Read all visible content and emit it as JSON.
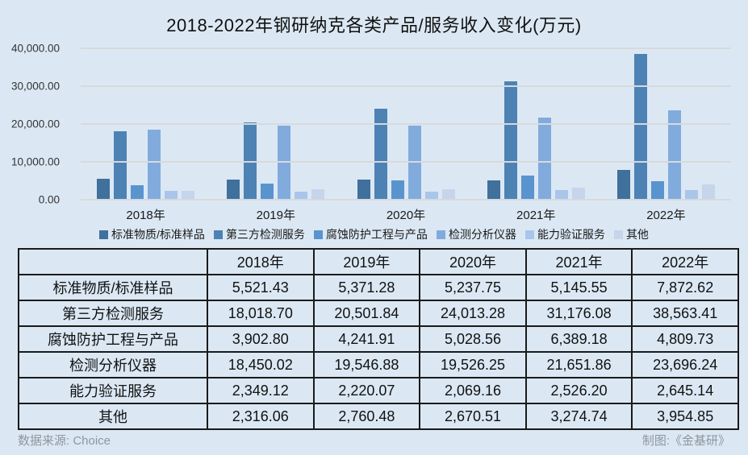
{
  "title": "2018-2022年钢研纳克各类产品/服务收入变化(万元)",
  "chart_data": {
    "type": "bar",
    "title": "2018-2022年钢研纳克各类产品/服务收入变化(万元)",
    "categories": [
      "2018年",
      "2019年",
      "2020年",
      "2021年",
      "2022年"
    ],
    "series": [
      {
        "name": "标准物质/标准样品",
        "color": "#40709c",
        "values": [
          5521.43,
          5371.28,
          5237.75,
          5145.55,
          7872.62
        ]
      },
      {
        "name": "第三方检测服务",
        "color": "#4d82b4",
        "values": [
          18018.7,
          20501.84,
          24013.28,
          31176.08,
          38563.41
        ]
      },
      {
        "name": "腐蚀防护工程与产品",
        "color": "#5a94cf",
        "values": [
          3902.8,
          4241.91,
          5028.56,
          6389.18,
          4809.73
        ]
      },
      {
        "name": "检测分析仪器",
        "color": "#82abdd",
        "values": [
          18450.02,
          19546.88,
          19526.25,
          21651.86,
          23696.24
        ]
      },
      {
        "name": "能力验证服务",
        "color": "#a9c6ea",
        "values": [
          2349.12,
          2220.07,
          2069.16,
          2526.2,
          2645.14
        ]
      },
      {
        "name": "其他",
        "color": "#c6d4ec",
        "values": [
          2316.06,
          2760.48,
          2670.51,
          3274.74,
          3954.85
        ]
      }
    ],
    "ylim": [
      0,
      40000
    ],
    "yticks": [
      "40,000.00",
      "30,000.00",
      "20,000.00",
      "10,000.00",
      "0.00"
    ],
    "grid": true,
    "legend_position": "bottom",
    "xlabel": "",
    "ylabel": ""
  },
  "table": {
    "header": [
      "",
      "2018年",
      "2019年",
      "2020年",
      "2021年",
      "2022年"
    ],
    "rows": [
      {
        "label": "标准物质/标准样品",
        "values": [
          "5,521.43",
          "5,371.28",
          "5,237.75",
          "5,145.55",
          "7,872.62"
        ]
      },
      {
        "label": "第三方检测服务",
        "values": [
          "18,018.70",
          "20,501.84",
          "24,013.28",
          "31,176.08",
          "38,563.41"
        ]
      },
      {
        "label": "腐蚀防护工程与产品",
        "values": [
          "3,902.80",
          "4,241.91",
          "5,028.56",
          "6,389.18",
          "4,809.73"
        ]
      },
      {
        "label": "检测分析仪器",
        "values": [
          "18,450.02",
          "19,546.88",
          "19,526.25",
          "21,651.86",
          "23,696.24"
        ]
      },
      {
        "label": "能力验证服务",
        "values": [
          "2,349.12",
          "2,220.07",
          "2,069.16",
          "2,526.20",
          "2,645.14"
        ]
      },
      {
        "label": "其他",
        "values": [
          "2,316.06",
          "2,760.48",
          "2,670.51",
          "3,274.74",
          "3,954.85"
        ]
      }
    ]
  },
  "footer": {
    "source": "数据来源:  Choice",
    "credit": "制图:《金基研》"
  },
  "colors": {
    "background": "#dbe8f4",
    "gridline": "#d7d9dc",
    "table_border": "#1a1a1a",
    "footer_text": "#8f969e"
  }
}
